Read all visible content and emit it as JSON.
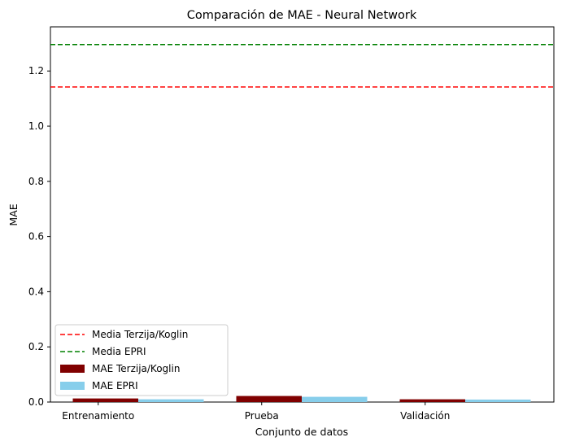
{
  "chart_data": {
    "type": "bar",
    "title": "Comparación de MAE - Neural Network",
    "xlabel": "Conjunto de datos",
    "ylabel": "MAE",
    "ylim": [
      0,
      1.36
    ],
    "yticks": [
      "0.0",
      "0.2",
      "0.4",
      "0.6",
      "0.8",
      "1.0",
      "1.2"
    ],
    "categories": [
      "Entrenamiento",
      "Prueba",
      "Validación"
    ],
    "series": [
      {
        "name": "MAE Terzija/Koglin",
        "color": "#800000",
        "values": [
          0.013,
          0.022,
          0.01
        ]
      },
      {
        "name": "MAE EPRI",
        "color": "#87ceeb",
        "values": [
          0.01,
          0.019,
          0.009
        ]
      }
    ],
    "hlines": [
      {
        "name": "Media Terzija/Koglin",
        "value": 1.142,
        "color": "#ff0000",
        "style": "dashed"
      },
      {
        "name": "Media EPRI",
        "value": 1.296,
        "color": "#008000",
        "style": "dashed"
      }
    ],
    "grid": false,
    "legend_position": "lower-left"
  }
}
